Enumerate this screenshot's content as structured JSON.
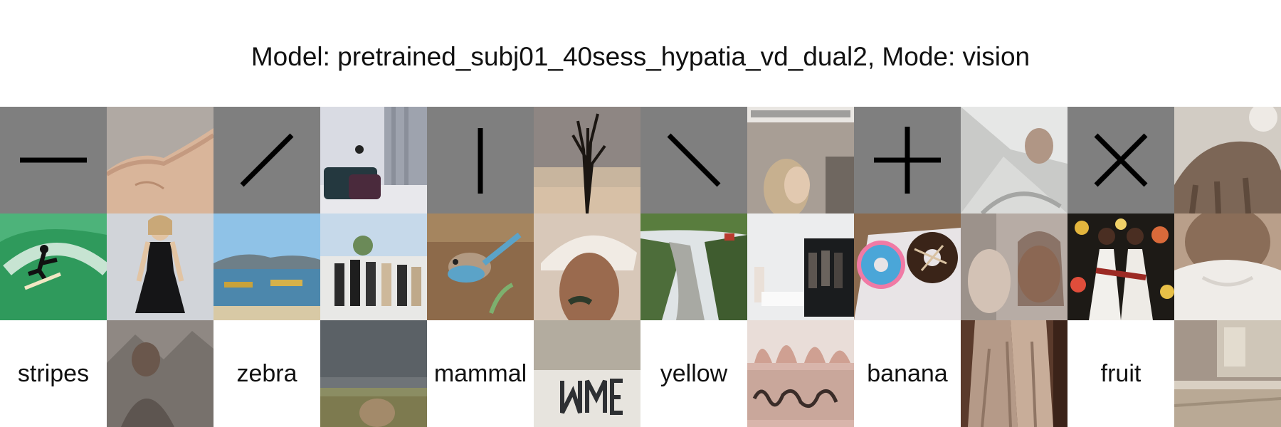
{
  "title": "Model: pretrained_subj01_40sess_hypatia_vd_dual2, Mode: vision",
  "rows": [
    {
      "kind": "stimulus-and-reconstruction",
      "cells": [
        {
          "type": "oriented-line-stimulus",
          "orientation": "horizontal"
        },
        {
          "type": "photo",
          "subject": "reconstructed image of a bare torso"
        },
        {
          "type": "oriented-line-stimulus",
          "orientation": "diagonal-45"
        },
        {
          "type": "photo",
          "subject": "reconstructed bedroom with pillows"
        },
        {
          "type": "oriented-line-stimulus",
          "orientation": "vertical"
        },
        {
          "type": "photo",
          "subject": "reconstructed dark plant sculpture"
        },
        {
          "type": "oriented-line-stimulus",
          "orientation": "diagonal-135"
        },
        {
          "type": "photo",
          "subject": "reconstructed woman in room"
        },
        {
          "type": "oriented-line-stimulus",
          "orientation": "plus"
        },
        {
          "type": "photo",
          "subject": "reconstructed person lying in sheets"
        },
        {
          "type": "oriented-line-stimulus",
          "orientation": "cross"
        },
        {
          "type": "photo",
          "subject": "reconstructed animal sculpture"
        }
      ]
    },
    {
      "kind": "natural-and-reconstruction",
      "cells": [
        {
          "type": "photo",
          "subject": "surfer on green wave"
        },
        {
          "type": "photo",
          "subject": "woman in black dress"
        },
        {
          "type": "photo",
          "subject": "boats on lake with hills"
        },
        {
          "type": "photo",
          "subject": "group of people outdoors"
        },
        {
          "type": "photo",
          "subject": "blue bird on ground"
        },
        {
          "type": "photo",
          "subject": "reconstructed face with white cap"
        },
        {
          "type": "photo",
          "subject": "river valley landscape"
        },
        {
          "type": "photo",
          "subject": "people in white gallery"
        },
        {
          "type": "photo",
          "subject": "donuts in box"
        },
        {
          "type": "photo",
          "subject": "reconstructed people faces"
        },
        {
          "type": "photo",
          "subject": "two women in white with floral backdrop"
        },
        {
          "type": "photo",
          "subject": "reconstructed woman in white top"
        }
      ]
    },
    {
      "kind": "word-and-reconstruction",
      "cells": [
        {
          "type": "word",
          "text": "stripes"
        },
        {
          "type": "photo",
          "subject": "reconstructed man with mountains"
        },
        {
          "type": "word",
          "text": "zebra"
        },
        {
          "type": "photo",
          "subject": "reconstructed field landscape"
        },
        {
          "type": "word",
          "text": "mammal"
        },
        {
          "type": "photo",
          "subject": "reconstructed letters on wall"
        },
        {
          "type": "word",
          "text": "yellow"
        },
        {
          "type": "photo",
          "subject": "reconstructed blurred sign"
        },
        {
          "type": "word",
          "text": "banana"
        },
        {
          "type": "photo",
          "subject": "reconstructed fabric folds"
        },
        {
          "type": "word",
          "text": "fruit"
        },
        {
          "type": "photo",
          "subject": "reconstructed bedroom"
        }
      ]
    }
  ]
}
